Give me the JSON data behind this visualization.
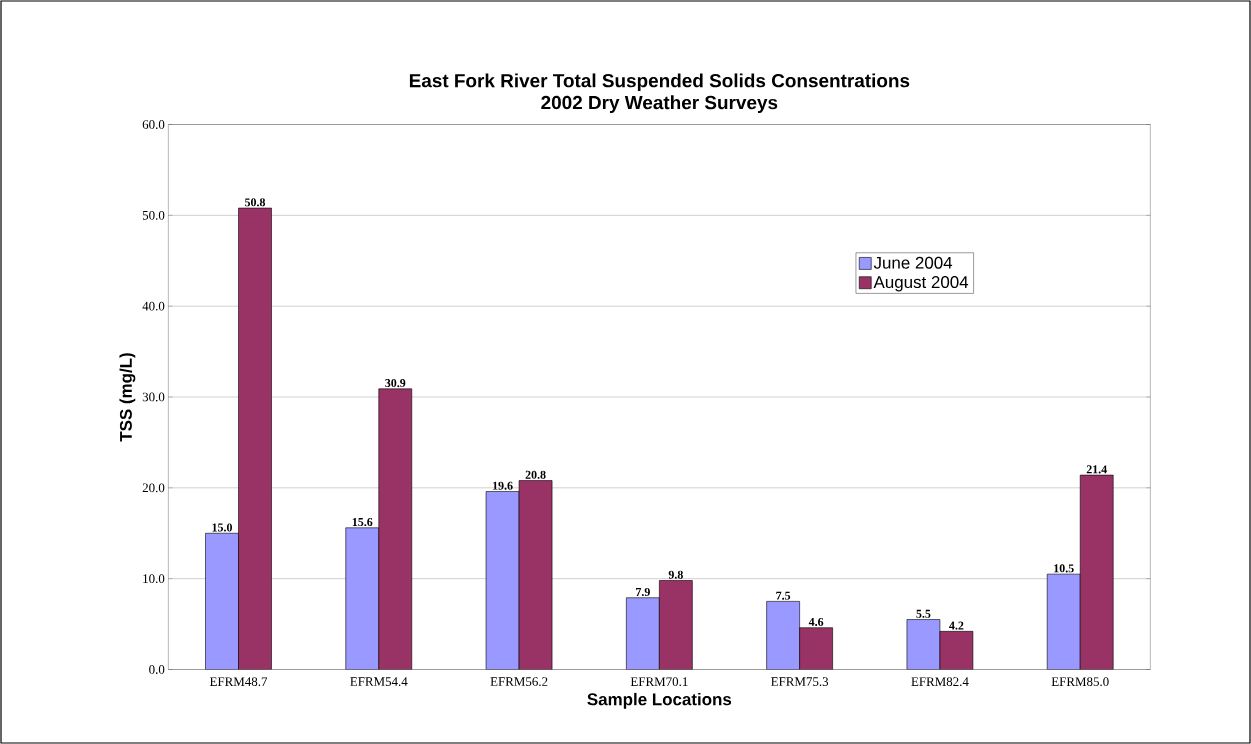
{
  "chart_data": {
    "type": "bar",
    "title": "East Fork River Total Suspended Solids Consentrations\n2002 Dry Weather Surveys",
    "xlabel": "Sample Locations",
    "ylabel": "TSS (mg/L)",
    "categories": [
      "EFRM48.7",
      "EFRM54.4",
      "EFRM56.2",
      "EFRM70.1",
      "EFRM75.3",
      "EFRM82.4",
      "EFRM85.0"
    ],
    "series": [
      {
        "name": "June 2004",
        "color": "#9999ff",
        "values": [
          15.0,
          15.6,
          19.6,
          7.9,
          7.5,
          5.5,
          10.5
        ],
        "value_labels": [
          "15.0",
          "15.6",
          "19.6",
          "7.9",
          "7.5",
          "5.5",
          "10.5"
        ]
      },
      {
        "name": "August 2004",
        "color": "#993366",
        "values": [
          50.8,
          30.9,
          20.8,
          9.8,
          4.6,
          4.2,
          21.4
        ],
        "value_labels": [
          "50.8",
          "30.9",
          "20.8",
          "9.8",
          "4.6",
          "4.2",
          "21.4"
        ]
      }
    ],
    "ylim": [
      0,
      60
    ],
    "yticks": [
      {
        "value": 0,
        "label": "0.0"
      },
      {
        "value": 10,
        "label": "10.0"
      },
      {
        "value": 20,
        "label": "20.0"
      },
      {
        "value": 30,
        "label": "30.0"
      },
      {
        "value": 40,
        "label": "40.0"
      },
      {
        "value": 50,
        "label": "50.0"
      },
      {
        "value": 60,
        "label": "60.0"
      }
    ],
    "grid": "y",
    "legend": "top right"
  }
}
